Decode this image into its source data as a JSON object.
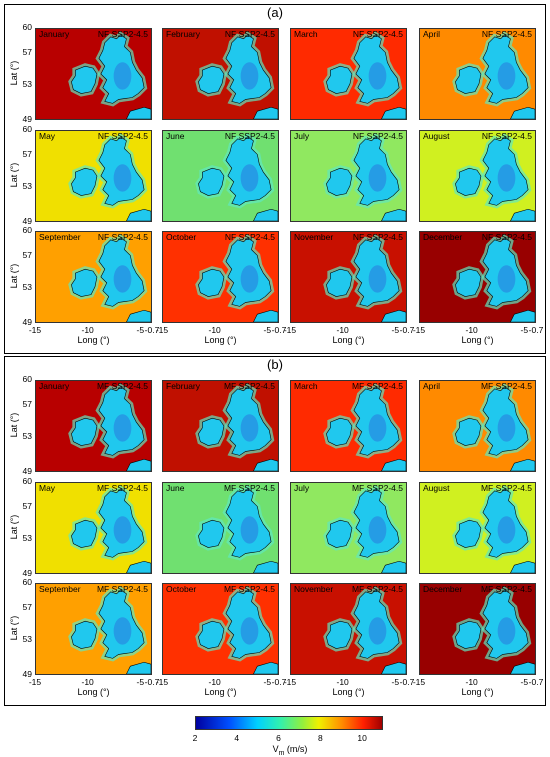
{
  "chart_data": [
    {
      "type": "heatmap",
      "section_label": "(a)",
      "scenario": "NF SSP2-4.5",
      "months": [
        "January",
        "February",
        "March",
        "April",
        "May",
        "June",
        "July",
        "August",
        "September",
        "October",
        "November",
        "December"
      ],
      "ylabel": "Lat (°)",
      "xlabel": "Long (°)",
      "yticks": [
        "60",
        "57",
        "53",
        "49"
      ],
      "xticks": [
        "-15",
        "-10",
        "-5",
        "-0.7"
      ]
    },
    {
      "type": "heatmap",
      "section_label": "(b)",
      "scenario": "MF SSP2-4.5",
      "months": [
        "January",
        "February",
        "March",
        "April",
        "May",
        "June",
        "July",
        "August",
        "September",
        "October",
        "November",
        "December"
      ],
      "ylabel": "Lat (°)",
      "xlabel": "Long (°)",
      "yticks": [
        "60",
        "57",
        "53",
        "49"
      ],
      "xticks": [
        "-15",
        "-10",
        "-5",
        "-0.7"
      ]
    }
  ],
  "colorbar": {
    "label": "V",
    "label_sub": "m",
    "label_unit": " (m/s)",
    "ticks": [
      "2",
      "4",
      "6",
      "8",
      "10"
    ],
    "range": [
      2,
      11
    ]
  },
  "colors": {
    "sea_by_month": [
      "#b80000",
      "#c01000",
      "#ff2a00",
      "#ff8a00",
      "#f0e000",
      "#70e070",
      "#90e860",
      "#d0f020",
      "#ffa000",
      "#ff3000",
      "#c81000",
      "#980000"
    ],
    "land": "#20c8ee",
    "land_inner": "#2a7fe0",
    "coastal": "#60e8c0"
  }
}
